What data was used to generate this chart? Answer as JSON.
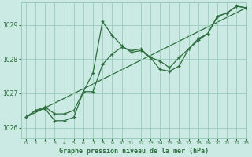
{
  "title": "Graphe pression niveau de la mer (hPa)",
  "bg_color": "#cceae4",
  "grid_color": "#99ccbb",
  "line_color": "#2d6e3e",
  "xlim": [
    -0.5,
    23
  ],
  "ylim": [
    1025.7,
    1029.65
  ],
  "yticks": [
    1026,
    1027,
    1028,
    1029
  ],
  "xticks": [
    0,
    1,
    2,
    3,
    4,
    5,
    6,
    7,
    8,
    9,
    10,
    11,
    12,
    13,
    14,
    15,
    16,
    17,
    18,
    19,
    20,
    21,
    22,
    23
  ],
  "series1_x": [
    0,
    1,
    2,
    3,
    4,
    5,
    6,
    7,
    8,
    9,
    10,
    11,
    12,
    13,
    14,
    15,
    16,
    17,
    18,
    19,
    20,
    21,
    22,
    23
  ],
  "series1_y": [
    1026.3,
    1026.5,
    1026.6,
    1026.4,
    1026.4,
    1026.5,
    1027.05,
    1027.6,
    1029.1,
    1028.7,
    1028.4,
    1028.2,
    1028.25,
    1028.05,
    1027.95,
    1027.75,
    1028.05,
    1028.3,
    1028.6,
    1028.75,
    1029.25,
    1029.35,
    1029.55,
    1029.5
  ],
  "series2_x": [
    0,
    1,
    2,
    3,
    4,
    5,
    6,
    7,
    8,
    9,
    10,
    11,
    12,
    13,
    14,
    15,
    16,
    17,
    18,
    19,
    20,
    21,
    22,
    23
  ],
  "series2_y": [
    1026.3,
    1026.5,
    1026.55,
    1026.2,
    1026.2,
    1026.3,
    1027.05,
    1027.05,
    1027.85,
    1028.15,
    1028.35,
    1028.25,
    1028.3,
    1028.05,
    1027.7,
    1027.65,
    1027.8,
    1028.3,
    1028.55,
    1028.75,
    1029.25,
    1029.35,
    1029.55,
    1029.5
  ],
  "series3_x": [
    0,
    23
  ],
  "series3_y": [
    1026.3,
    1029.5
  ]
}
